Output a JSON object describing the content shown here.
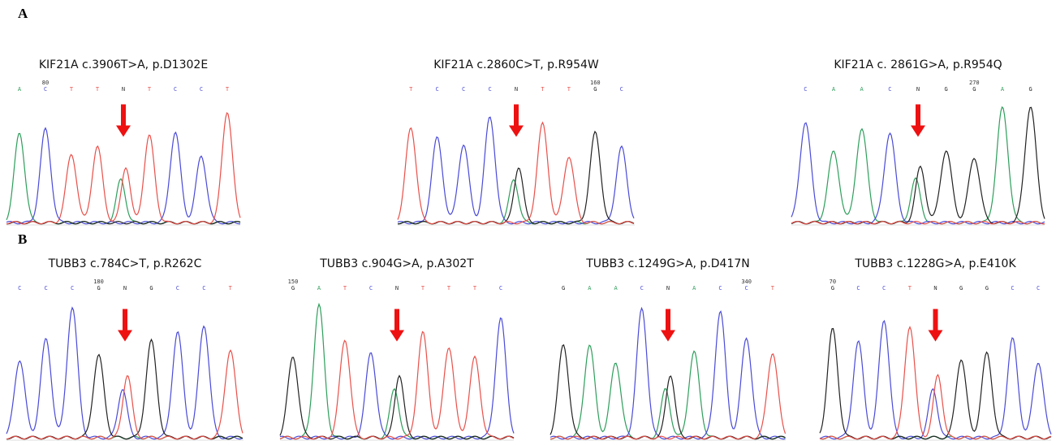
{
  "figure": {
    "panel_labels": [
      "A",
      "B"
    ],
    "panels": [
      {
        "title": "KIF21A c.3906T>A, p.D1302E",
        "position": 80,
        "bases": [
          "A",
          "C",
          "T",
          "T",
          "N",
          "T",
          "C",
          "C",
          "T"
        ]
      },
      {
        "title": "KIF21A c.2860C>T, p.R954W",
        "position": 160,
        "bases": [
          "T",
          "C",
          "C",
          "C",
          "N",
          "T",
          "T",
          "G",
          "C"
        ]
      },
      {
        "title": "KIF21A c. 2861G>A, p.R954Q",
        "position": 270,
        "bases": [
          "C",
          "A",
          "A",
          "C",
          "N",
          "G",
          "G",
          "A",
          "G"
        ]
      },
      {
        "title": "TUBB3 c.784C>T, p.R262C",
        "position": 180,
        "bases": [
          "C",
          "C",
          "C",
          "G",
          "N",
          "G",
          "C",
          "C",
          "T"
        ]
      },
      {
        "title": "TUBB3 c.904G>A, p.A302T",
        "position": 150,
        "bases": [
          "G",
          "A",
          "T",
          "C",
          "N",
          "T",
          "T",
          "T",
          "C"
        ]
      },
      {
        "title": "TUBB3 c.1249G>A, p.D417N",
        "position": 340,
        "bases": [
          "G",
          "A",
          "A",
          "C",
          "N",
          "A",
          "C",
          "C",
          "T"
        ]
      },
      {
        "title": "TUBB3 c.1228G>A, p.E410K",
        "position": 70,
        "bases": [
          "G",
          "C",
          "C",
          "T",
          "N",
          "G",
          "G",
          "C",
          "C"
        ]
      }
    ]
  }
}
